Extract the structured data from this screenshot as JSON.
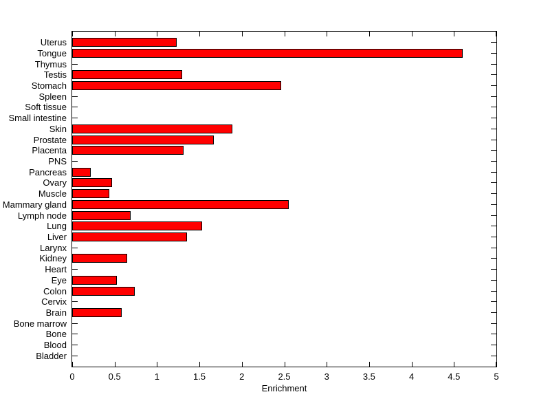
{
  "chart_data": {
    "type": "bar",
    "orientation": "horizontal",
    "title": "",
    "xlabel": "Enrichment",
    "ylabel": "",
    "xlim": [
      0,
      5
    ],
    "x_ticks": [
      "0",
      "0.5",
      "1",
      "1.5",
      "2",
      "2.5",
      "3",
      "3.5",
      "4",
      "4.5",
      "5"
    ],
    "grid": "off",
    "legend": "none",
    "categories": [
      "Uterus",
      "Tongue",
      "Thymus",
      "Testis",
      "Stomach",
      "Spleen",
      "Soft tissue",
      "Small intestine",
      "Skin",
      "Prostate",
      "Placenta",
      "PNS",
      "Pancreas",
      "Ovary",
      "Muscle",
      "Mammary gland",
      "Lymph node",
      "Lung",
      "Liver",
      "Larynx",
      "Kidney",
      "Heart",
      "Eye",
      "Colon",
      "Cervix",
      "Brain",
      "Bone marrow",
      "Bone",
      "Blood",
      "Bladder"
    ],
    "values": [
      1.23,
      4.6,
      0,
      1.3,
      2.46,
      0,
      0,
      0,
      1.89,
      1.67,
      1.31,
      0,
      0.22,
      0.47,
      0.44,
      2.55,
      0.69,
      1.53,
      1.35,
      0,
      0.65,
      0,
      0.53,
      0.74,
      0,
      0.58,
      0,
      0,
      0,
      0
    ],
    "colors": {
      "bar_fill": "#ff0000",
      "bar_edge": "#000000",
      "axis": "#000000",
      "text": "#000000",
      "background": "#ffffff"
    }
  }
}
